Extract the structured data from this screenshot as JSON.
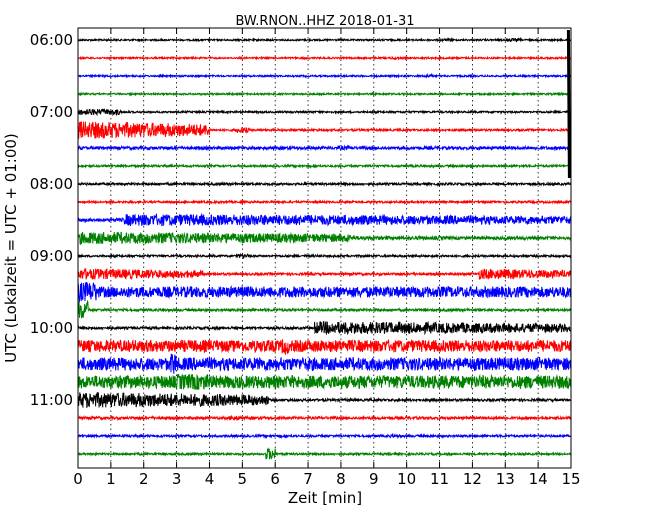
{
  "chart_data": {
    "type": "line",
    "title": "BW.RNON..HHZ 2018-01-31",
    "xlabel": "Zeit  [min]",
    "ylabel": "UTC (Lokalzeit = UTC + 01:00)",
    "xlim": [
      0,
      15
    ],
    "x_ticks": [
      "0",
      "1",
      "2",
      "3",
      "4",
      "5",
      "6",
      "7",
      "8",
      "9",
      "10",
      "11",
      "12",
      "13",
      "14",
      "15"
    ],
    "y_ticks": [
      "06:00",
      "07:00",
      "08:00",
      "09:00",
      "10:00",
      "11:00"
    ],
    "grid": "vertical dotted",
    "colors": [
      "#000000",
      "#ff0000",
      "#0000ff",
      "#008000"
    ],
    "series": [
      {
        "start": "06:00",
        "color": "black",
        "amplitude": 0.8,
        "bursts": [
          [
            13.0,
            13.5,
            1.6
          ],
          [
            11.0,
            11.4,
            1.3
          ]
        ]
      },
      {
        "start": "06:15",
        "color": "red",
        "amplitude": 0.8,
        "bursts": [
          [
            9.5,
            9.8,
            1.3
          ]
        ]
      },
      {
        "start": "06:30",
        "color": "blue",
        "amplitude": 0.8,
        "bursts": [
          [
            10.5,
            10.8,
            1.6
          ]
        ]
      },
      {
        "start": "06:45",
        "color": "green",
        "amplitude": 0.8,
        "bursts": [
          [
            14.6,
            14.8,
            1.2
          ]
        ]
      },
      {
        "start": "07:00",
        "color": "black",
        "amplitude": 0.9,
        "bursts": [
          [
            0.0,
            1.3,
            3.0
          ]
        ]
      },
      {
        "start": "07:15",
        "color": "red",
        "amplitude": 1.0,
        "bursts": [
          [
            0.0,
            4.0,
            9.0
          ],
          [
            4.8,
            5.2,
            2.5
          ]
        ]
      },
      {
        "start": "07:30",
        "color": "blue",
        "amplitude": 1.5,
        "bursts": [
          [
            7.9,
            8.4,
            1.9
          ]
        ]
      },
      {
        "start": "07:45",
        "color": "green",
        "amplitude": 1.0,
        "bursts": []
      },
      {
        "start": "08:00",
        "color": "black",
        "amplitude": 1.1,
        "bursts": []
      },
      {
        "start": "08:15",
        "color": "red",
        "amplitude": 1.0,
        "bursts": []
      },
      {
        "start": "08:30",
        "color": "blue",
        "amplitude": 1.6,
        "bursts": [
          [
            1.4,
            15.0,
            6.0
          ]
        ]
      },
      {
        "start": "08:45",
        "color": "green",
        "amplitude": 1.6,
        "bursts": [
          [
            0.0,
            8.3,
            6.2
          ],
          [
            8.3,
            15.0,
            2.0
          ]
        ]
      },
      {
        "start": "09:00",
        "color": "black",
        "amplitude": 1.0,
        "bursts": [
          [
            4.8,
            5.2,
            2.0
          ]
        ]
      },
      {
        "start": "09:15",
        "color": "red",
        "amplitude": 1.2,
        "bursts": [
          [
            0.0,
            3.8,
            5.5
          ],
          [
            12.2,
            15.0,
            5.5
          ]
        ]
      },
      {
        "start": "09:30",
        "color": "blue",
        "amplitude": 5.5,
        "bursts": [
          [
            0.0,
            0.6,
            10.0
          ]
        ]
      },
      {
        "start": "09:45",
        "color": "green",
        "amplitude": 1.2,
        "bursts": [
          [
            0.0,
            0.3,
            9.0
          ]
        ]
      },
      {
        "start": "10:00",
        "color": "black",
        "amplitude": 1.2,
        "bursts": [
          [
            7.2,
            15.0,
            6.5
          ]
        ]
      },
      {
        "start": "10:15",
        "color": "red",
        "amplitude": 6.0,
        "bursts": [
          [
            6.2,
            6.4,
            8.0
          ]
        ]
      },
      {
        "start": "10:30",
        "color": "blue",
        "amplitude": 6.5,
        "bursts": [
          [
            2.8,
            3.0,
            11.0
          ]
        ]
      },
      {
        "start": "10:45",
        "color": "green",
        "amplitude": 6.5,
        "bursts": [
          [
            3.0,
            4.0,
            8.0
          ]
        ]
      },
      {
        "start": "11:00",
        "color": "black",
        "amplitude": 1.2,
        "bursts": [
          [
            0.0,
            5.8,
            8.0
          ]
        ]
      },
      {
        "start": "11:15",
        "color": "red",
        "amplitude": 1.3,
        "bursts": [
          [
            4.6,
            4.9,
            2.5
          ]
        ]
      },
      {
        "start": "11:30",
        "color": "blue",
        "amplitude": 1.1,
        "bursts": [
          [
            9.5,
            9.8,
            1.6
          ]
        ]
      },
      {
        "start": "11:45",
        "color": "green",
        "amplitude": 1.0,
        "bursts": [
          [
            5.7,
            6.0,
            6.0
          ]
        ]
      }
    ]
  }
}
